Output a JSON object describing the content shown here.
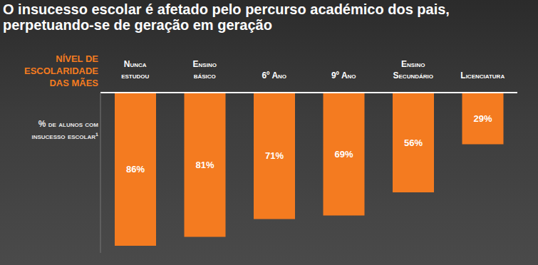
{
  "chart_data": {
    "type": "bar",
    "title": "O insucesso escolar é afetado pelo percurso académico dos pais, perpetuando-se de geração em geração",
    "x_label": "Nível de escolaridade das mães",
    "y_label": "% de alunos com insucesso escolar¹",
    "categories": [
      "Nunca estudou",
      "Ensino básico",
      "6º Ano",
      "9º Ano",
      "Ensino Secundário",
      "Licenciatura"
    ],
    "values": [
      86,
      81,
      71,
      69,
      56,
      29
    ],
    "value_labels": [
      "86%",
      "81%",
      "71%",
      "69%",
      "56%",
      "29%"
    ],
    "color": "#f47b20",
    "ylim": [
      0,
      90
    ],
    "data_labels": true,
    "grid": false,
    "tick_labels": "x"
  }
}
